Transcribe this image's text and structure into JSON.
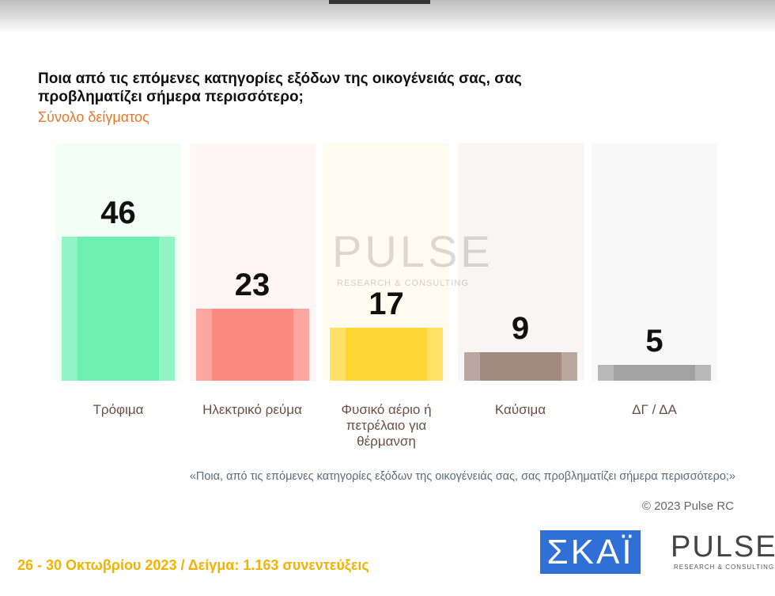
{
  "chart_data": {
    "type": "bar",
    "title": "Ποια από τις επόμενες κατηγορίες εξόδων της οικογένειάς σας, σας προβληματίζει σήμερα περισσότερο;",
    "subtitle": "Σύνολο δείγματος",
    "categories": [
      "Τρόφιμα",
      "Ηλεκτρικό ρεύμα",
      "Φυσικό αέριο ή πετρέλαιο για θέρμανση",
      "Καύσιμα",
      "ΔΓ / ΔΑ"
    ],
    "values": [
      46,
      23,
      17,
      9,
      5
    ],
    "colors": [
      "#6ef0b2",
      "#fa8a80",
      "#fdd835",
      "#a38a80",
      "#a2a2a2"
    ],
    "footnote": "«Ποια, από τις επόμενες κατηγορίες εξόδων της οικογένειάς σας, σας προβληματίζει σήμερα περισσότερο;»"
  },
  "watermark": {
    "name": "PULSE",
    "tagline": "RESEARCH & CONSULTING"
  },
  "copyright": "© 2023 Pulse RC",
  "survey_info": "26 - 30  Οκτωβρίου  2023  /  Δείγμα:  1.163 συνεντεύξεις",
  "logos": {
    "channel": "ΣΚΑΪ",
    "pollster": "PULSE",
    "pollster_tagline": "RESEARCH & CONSULTING"
  }
}
